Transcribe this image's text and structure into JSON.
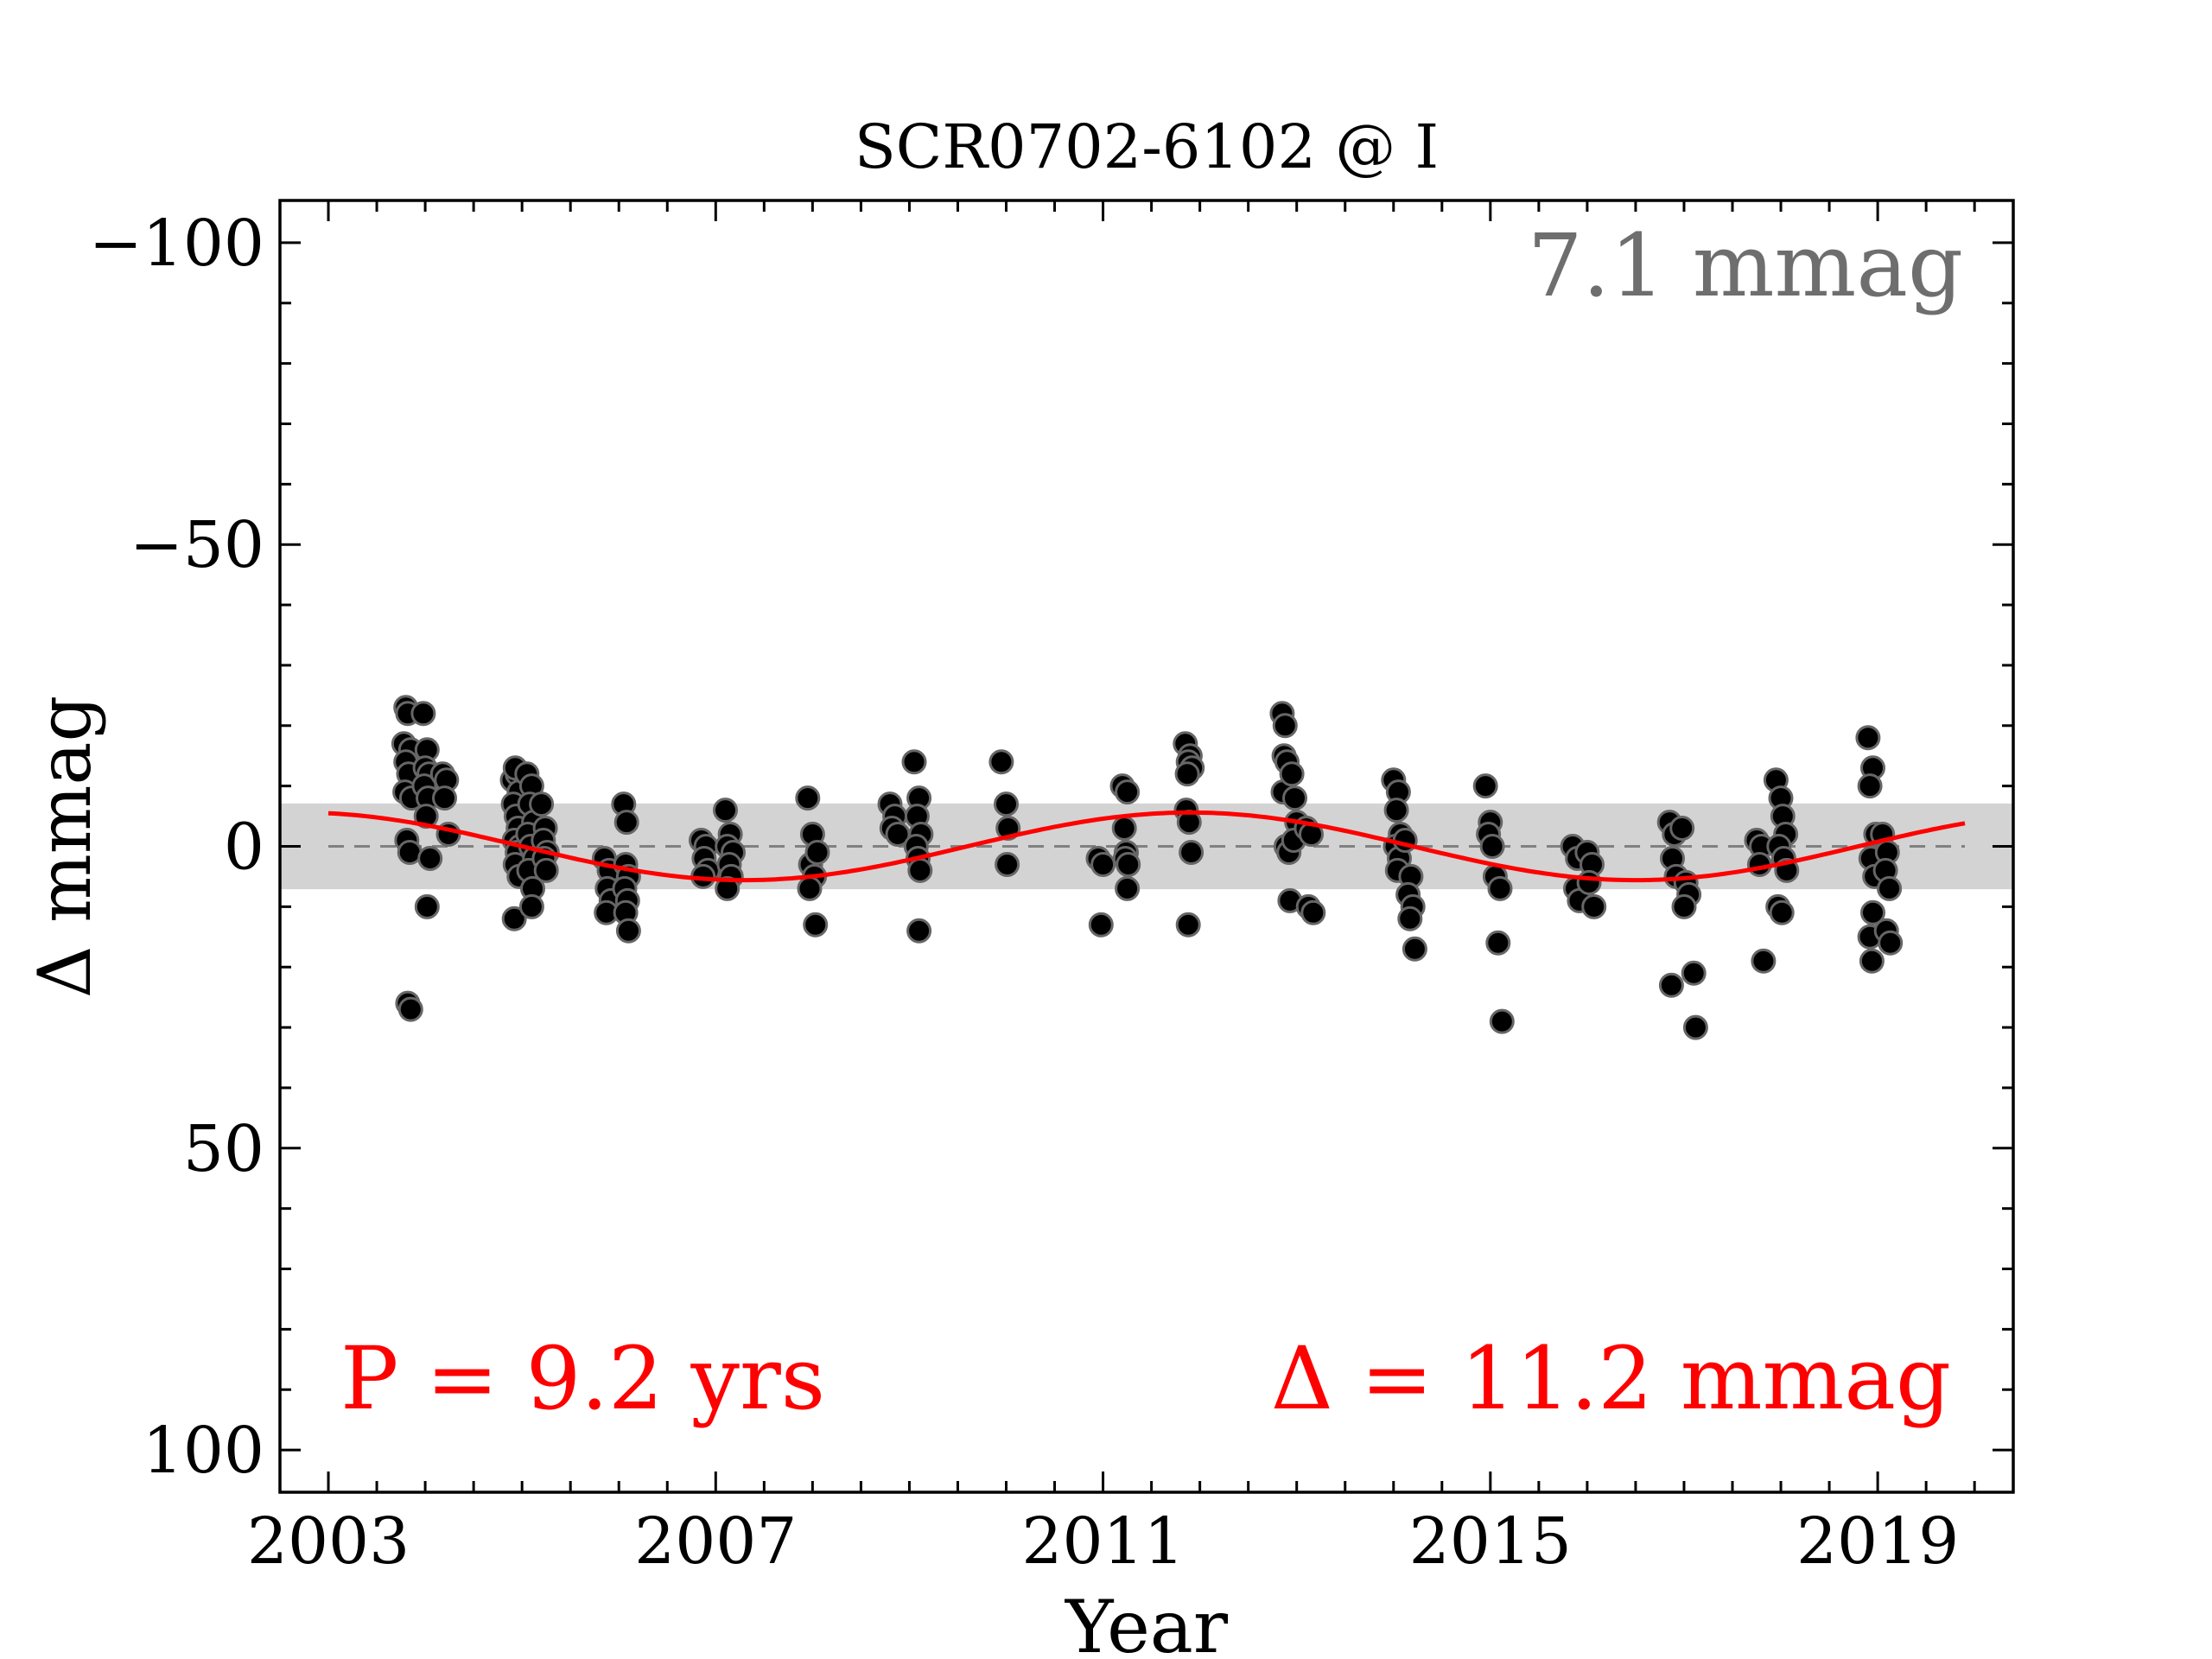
{
  "chart_data": {
    "type": "scatter",
    "title": "SCR0702-6102 @ I",
    "xlabel": "Year",
    "ylabel": "Δ  mmag",
    "xlim": [
      2002.5,
      2020.4
    ],
    "ylim": [
      -107,
      107
    ],
    "y_inverted": true,
    "x_ticks": [
      2003,
      2007,
      2011,
      2015,
      2019
    ],
    "x_tick_labels": [
      "2003",
      "2007",
      "2011",
      "2015",
      "2019"
    ],
    "y_ticks": [
      -100,
      -50,
      0,
      50,
      100
    ],
    "y_tick_labels": [
      "−100",
      "−50",
      "0",
      "50",
      "100"
    ],
    "rms_band": 7.1,
    "zero_line": 0,
    "annotations": {
      "rms": "7.1 mmag",
      "period": "P = 9.2 yrs",
      "amplitude": "Δ = 11.2 mmag"
    },
    "fit": {
      "period_yrs": 9.2,
      "semi_amplitude": 5.6,
      "peak_year": 2011.9,
      "x_range": [
        2003.0,
        2019.9
      ],
      "color": "#ff0000"
    },
    "colors": {
      "points": "#000000",
      "point_edge": "#666666",
      "band": "#d3d3d3",
      "fit": "#ff0000",
      "rms_text": "#6e6e6e",
      "annotation": "#ff0000"
    },
    "points": [
      [
        2003.8,
        -23
      ],
      [
        2003.82,
        -22
      ],
      [
        2003.78,
        -17
      ],
      [
        2003.85,
        -16
      ],
      [
        2003.8,
        -14
      ],
      [
        2003.83,
        -12
      ],
      [
        2003.79,
        -9
      ],
      [
        2003.86,
        -8
      ],
      [
        2003.81,
        -1
      ],
      [
        2003.84,
        1
      ],
      [
        2003.82,
        26
      ],
      [
        2003.85,
        27
      ],
      [
        2003.98,
        -22
      ],
      [
        2004.02,
        -16
      ],
      [
        2004.0,
        -13
      ],
      [
        2004.04,
        -12
      ],
      [
        2003.99,
        -10
      ],
      [
        2004.03,
        -8
      ],
      [
        2004.01,
        -5
      ],
      [
        2004.05,
        2
      ],
      [
        2004.02,
        10
      ],
      [
        2004.18,
        -12
      ],
      [
        2004.22,
        -11
      ],
      [
        2004.2,
        -8
      ],
      [
        2004.24,
        -2
      ],
      [
        2004.9,
        -11
      ],
      [
        2004.95,
        -12
      ],
      [
        2004.93,
        -13
      ],
      [
        2004.97,
        -9
      ],
      [
        2004.91,
        -7
      ],
      [
        2004.94,
        -5
      ],
      [
        2004.96,
        -3
      ],
      [
        2004.92,
        -1
      ],
      [
        2004.98,
        0
      ],
      [
        2004.95,
        1
      ],
      [
        2004.93,
        3
      ],
      [
        2004.97,
        5
      ],
      [
        2004.92,
        12
      ],
      [
        2005.05,
        -12
      ],
      [
        2005.1,
        -10
      ],
      [
        2005.08,
        -7
      ],
      [
        2005.12,
        -4
      ],
      [
        2005.06,
        -2
      ],
      [
        2005.09,
        0
      ],
      [
        2005.13,
        2
      ],
      [
        2005.07,
        4
      ],
      [
        2005.11,
        7
      ],
      [
        2005.1,
        10
      ],
      [
        2005.2,
        -7
      ],
      [
        2005.24,
        -3
      ],
      [
        2005.22,
        -1
      ],
      [
        2005.26,
        1
      ],
      [
        2005.23,
        2
      ],
      [
        2005.25,
        4
      ],
      [
        2005.85,
        2
      ],
      [
        2005.9,
        4
      ],
      [
        2005.88,
        7
      ],
      [
        2005.92,
        9
      ],
      [
        2005.87,
        11
      ],
      [
        2006.05,
        -7
      ],
      [
        2006.08,
        -4
      ],
      [
        2006.07,
        3
      ],
      [
        2006.1,
        5
      ],
      [
        2006.06,
        7
      ],
      [
        2006.09,
        9
      ],
      [
        2006.07,
        11
      ],
      [
        2006.1,
        14
      ],
      [
        2006.85,
        -1
      ],
      [
        2006.9,
        0
      ],
      [
        2006.88,
        2
      ],
      [
        2006.92,
        4
      ],
      [
        2006.87,
        5
      ],
      [
        2007.1,
        -6
      ],
      [
        2007.15,
        -2
      ],
      [
        2007.12,
        0
      ],
      [
        2007.18,
        1
      ],
      [
        2007.14,
        3
      ],
      [
        2007.16,
        5
      ],
      [
        2007.12,
        7
      ],
      [
        2007.95,
        -8
      ],
      [
        2008.0,
        -2
      ],
      [
        2007.98,
        3
      ],
      [
        2008.02,
        5
      ],
      [
        2007.97,
        7
      ],
      [
        2008.05,
        1
      ],
      [
        2008.03,
        13
      ],
      [
        2008.8,
        -7
      ],
      [
        2008.85,
        -5
      ],
      [
        2008.82,
        -3
      ],
      [
        2008.88,
        -2
      ],
      [
        2009.05,
        -14
      ],
      [
        2009.1,
        -8
      ],
      [
        2009.08,
        -5
      ],
      [
        2009.12,
        -2
      ],
      [
        2009.07,
        0
      ],
      [
        2009.09,
        2
      ],
      [
        2009.11,
        4
      ],
      [
        2009.1,
        14
      ],
      [
        2009.95,
        -14
      ],
      [
        2010.0,
        -7
      ],
      [
        2010.02,
        -3
      ],
      [
        2010.01,
        3
      ],
      [
        2010.95,
        2
      ],
      [
        2011.0,
        3
      ],
      [
        2010.98,
        13
      ],
      [
        2011.2,
        -10
      ],
      [
        2011.25,
        -9
      ],
      [
        2011.22,
        -3
      ],
      [
        2011.24,
        1
      ],
      [
        2011.23,
        2
      ],
      [
        2011.26,
        3
      ],
      [
        2011.25,
        7
      ],
      [
        2011.85,
        -17
      ],
      [
        2011.9,
        -15
      ],
      [
        2011.88,
        -14
      ],
      [
        2011.92,
        -13
      ],
      [
        2011.87,
        -12
      ],
      [
        2011.86,
        -6
      ],
      [
        2011.89,
        -4
      ],
      [
        2011.91,
        1
      ],
      [
        2011.88,
        13
      ],
      [
        2012.85,
        -22
      ],
      [
        2012.88,
        -20
      ],
      [
        2012.87,
        -15
      ],
      [
        2012.9,
        -14
      ],
      [
        2012.86,
        -9
      ],
      [
        2012.89,
        0
      ],
      [
        2012.92,
        1
      ],
      [
        2012.95,
        -12
      ],
      [
        2012.98,
        -8
      ],
      [
        2013.0,
        -4
      ],
      [
        2012.97,
        -1
      ],
      [
        2012.93,
        9
      ],
      [
        2013.1,
        -3
      ],
      [
        2013.15,
        -2
      ],
      [
        2013.12,
        10
      ],
      [
        2013.17,
        11
      ],
      [
        2014.0,
        -11
      ],
      [
        2014.05,
        -9
      ],
      [
        2014.03,
        -6
      ],
      [
        2014.07,
        -2
      ],
      [
        2014.02,
        0
      ],
      [
        2014.06,
        2
      ],
      [
        2014.04,
        4
      ],
      [
        2014.12,
        -1
      ],
      [
        2014.18,
        5
      ],
      [
        2014.15,
        8
      ],
      [
        2014.2,
        10
      ],
      [
        2014.17,
        12
      ],
      [
        2014.22,
        17
      ],
      [
        2014.95,
        -10
      ],
      [
        2015.0,
        -4
      ],
      [
        2014.98,
        -2
      ],
      [
        2015.02,
        0
      ],
      [
        2015.05,
        5
      ],
      [
        2015.1,
        7
      ],
      [
        2015.08,
        16
      ],
      [
        2015.12,
        29
      ],
      [
        2015.85,
        0
      ],
      [
        2015.9,
        2
      ],
      [
        2015.88,
        7
      ],
      [
        2015.92,
        9
      ],
      [
        2016.0,
        1
      ],
      [
        2016.05,
        3
      ],
      [
        2016.02,
        6
      ],
      [
        2016.07,
        10
      ],
      [
        2016.85,
        -4
      ],
      [
        2016.9,
        -2
      ],
      [
        2016.88,
        2
      ],
      [
        2016.92,
        5
      ],
      [
        2016.87,
        23
      ],
      [
        2016.98,
        -3
      ],
      [
        2017.02,
        6
      ],
      [
        2017.05,
        8
      ],
      [
        2017.0,
        10
      ],
      [
        2017.1,
        21
      ],
      [
        2017.12,
        30
      ],
      [
        2017.75,
        -1
      ],
      [
        2017.8,
        0
      ],
      [
        2017.78,
        3
      ],
      [
        2017.82,
        19
      ],
      [
        2017.95,
        -11
      ],
      [
        2018.0,
        -8
      ],
      [
        2018.02,
        -5
      ],
      [
        2018.05,
        -2
      ],
      [
        2017.98,
        0
      ],
      [
        2018.03,
        2
      ],
      [
        2018.06,
        4
      ],
      [
        2017.97,
        10
      ],
      [
        2018.01,
        11
      ],
      [
        2018.9,
        -18
      ],
      [
        2018.95,
        -13
      ],
      [
        2018.92,
        -10
      ],
      [
        2018.98,
        -2
      ],
      [
        2018.93,
        2
      ],
      [
        2018.97,
        5
      ],
      [
        2018.95,
        11
      ],
      [
        2018.92,
        15
      ],
      [
        2018.94,
        19
      ],
      [
        2019.05,
        -2
      ],
      [
        2019.1,
        1
      ],
      [
        2019.08,
        4
      ],
      [
        2019.12,
        7
      ],
      [
        2019.09,
        14
      ],
      [
        2019.13,
        16
      ]
    ]
  }
}
